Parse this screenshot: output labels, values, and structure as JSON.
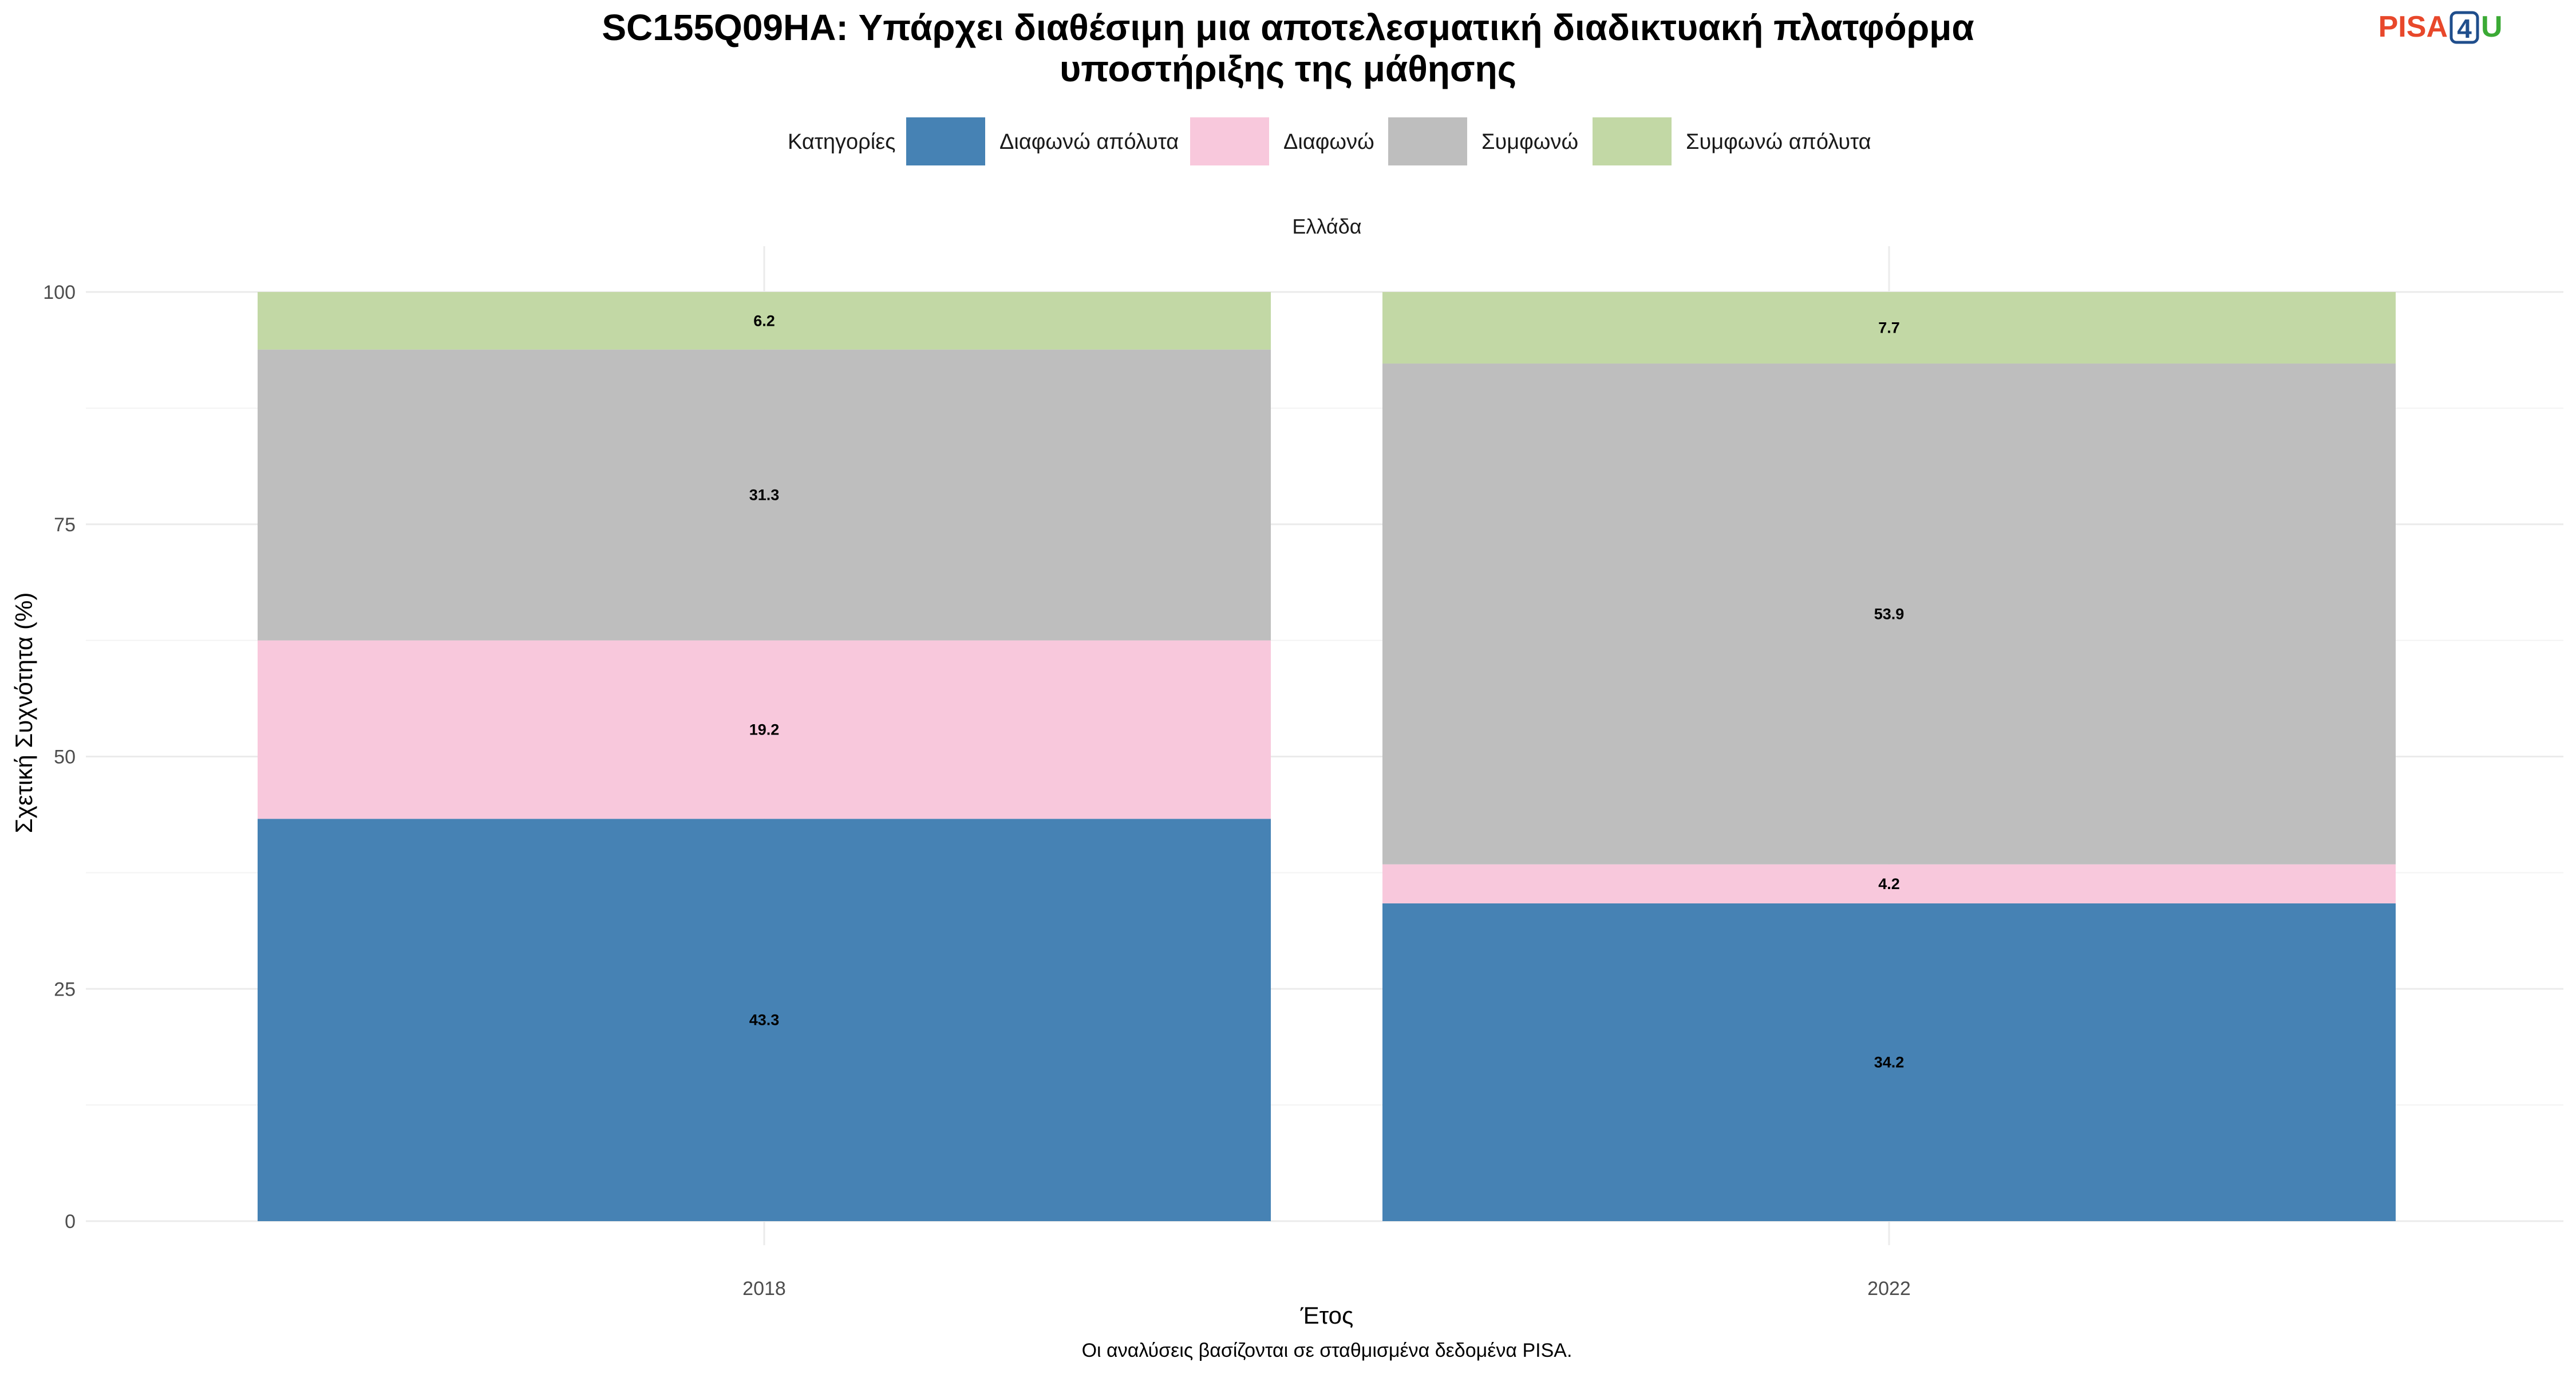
{
  "chart_data": {
    "type": "bar",
    "stacked": true,
    "title_line1": "SC155Q09HA: Υπάρχει διαθέσιμη μια αποτελεσματική διαδικτυακή πλατφόρμα",
    "title_line2": "υποστήριξης της μάθησης",
    "legend_title": "Κατηγορίες",
    "legend_position": "top",
    "facet_label": "Ελλάδα",
    "xlabel": "Έτος",
    "ylabel": "Σχετική Συχνότητα (%)",
    "caption": "Οι αναλύσεις βασίζονται σε σταθμισμένα δεδομένα PISA.",
    "categories": [
      "2018",
      "2022"
    ],
    "ylim": [
      0,
      100
    ],
    "yticks": [
      0,
      25,
      50,
      75,
      100
    ],
    "grid": true,
    "series": [
      {
        "name": "Διαφωνώ απόλυτα",
        "color": "#4682B4",
        "values": [
          43.3,
          34.2
        ]
      },
      {
        "name": "Διαφωνώ",
        "color": "#F8C8DC",
        "values": [
          19.2,
          4.2
        ]
      },
      {
        "name": "Συμφωνώ",
        "color": "#BEBEBE",
        "values": [
          31.3,
          53.9
        ]
      },
      {
        "name": "Συμφωνώ απόλυτα",
        "color": "#C2D8A5",
        "values": [
          6.2,
          7.7
        ]
      }
    ]
  },
  "logo": {
    "part1": "PISA",
    "part2": "4",
    "part3": "U",
    "color1": "#E8482B",
    "color2": "#1F4E8C",
    "color3": "#3BAA35"
  }
}
